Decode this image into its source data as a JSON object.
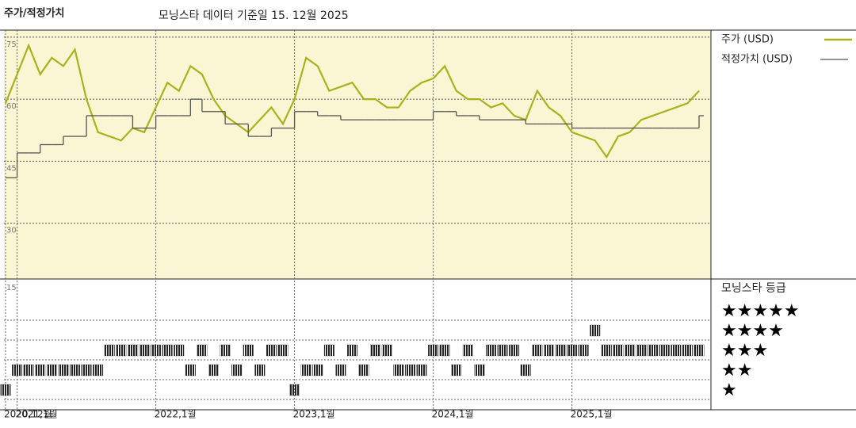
{
  "chart_data": [
    {
      "type": "line",
      "corner_label": "주가/적정가치",
      "title": "모닝스타 데이터 기준일 15. 12월 2025",
      "x": [
        "2020-12",
        "2021-01",
        "2021-02",
        "2021-03",
        "2021-04",
        "2021-05",
        "2021-06",
        "2021-07",
        "2021-08",
        "2021-09",
        "2021-10",
        "2021-11",
        "2021-12",
        "2022-01",
        "2022-02",
        "2022-03",
        "2022-04",
        "2022-05",
        "2022-06",
        "2022-07",
        "2022-08",
        "2022-09",
        "2022-10",
        "2022-11",
        "2022-12",
        "2023-01",
        "2023-02",
        "2023-03",
        "2023-04",
        "2023-05",
        "2023-06",
        "2023-07",
        "2023-08",
        "2023-09",
        "2023-10",
        "2023-11",
        "2023-12",
        "2024-01",
        "2024-02",
        "2024-03",
        "2024-04",
        "2024-05",
        "2024-06",
        "2024-07",
        "2024-08",
        "2024-09",
        "2024-10",
        "2024-11",
        "2024-12",
        "2025-01",
        "2025-02",
        "2025-03",
        "2025-04",
        "2025-05",
        "2025-06",
        "2025-07",
        "2025-08",
        "2025-09",
        "2025-10",
        "2025-11",
        "2025-12"
      ],
      "series": [
        {
          "name": "주가 (USD)",
          "color": "#a9b11c",
          "values": [
            59,
            66,
            73,
            66,
            70,
            68,
            72,
            60,
            52,
            51,
            50,
            53,
            52,
            58,
            64,
            62,
            68,
            66,
            60,
            56,
            54,
            52,
            55,
            58,
            54,
            60,
            70,
            68,
            62,
            63,
            64,
            60,
            60,
            58,
            58,
            62,
            64,
            65,
            68,
            62,
            60,
            60,
            58,
            59,
            56,
            55,
            62,
            58,
            56,
            52,
            51,
            50,
            46,
            51,
            52,
            55,
            56,
            57,
            58,
            59,
            62
          ]
        },
        {
          "name": "적정가치 (USD)",
          "color": "#555555",
          "step": true,
          "values": [
            41,
            47,
            47,
            49,
            49,
            51,
            51,
            56,
            56,
            56,
            56,
            53,
            53,
            56,
            56,
            56,
            60,
            57,
            57,
            54,
            54,
            51,
            51,
            53,
            53,
            57,
            57,
            56,
            56,
            55,
            55,
            55,
            55,
            55,
            55,
            55,
            55,
            57,
            57,
            56,
            56,
            55,
            55,
            55,
            55,
            54,
            54,
            54,
            54,
            53,
            53,
            53,
            53,
            53,
            53,
            53,
            53,
            53,
            53,
            53,
            56
          ]
        }
      ],
      "ylim": [
        16.5,
        76.7
      ],
      "yticks": [
        30,
        45,
        60,
        75
      ],
      "xticks": [
        {
          "value": "2020-12",
          "label": "2020,12월"
        },
        {
          "value": "2021-01",
          "label": "2021,1월"
        },
        {
          "value": "2022-01",
          "label": "2022,1월"
        },
        {
          "value": "2023-01",
          "label": "2023,1월"
        },
        {
          "value": "2024-01",
          "label": "2024,1월"
        },
        {
          "value": "2025-01",
          "label": "2025,1월"
        }
      ],
      "background": "#faf6d3",
      "grid": true
    },
    {
      "type": "rating",
      "title": "모닝스타 등급",
      "axis_note": "15",
      "color": "#222222",
      "levels": [
        {
          "value": 5,
          "label": "★★★★★"
        },
        {
          "value": 4,
          "label": "★★★★"
        },
        {
          "value": 3,
          "label": "★★★"
        },
        {
          "value": 2,
          "label": "★★"
        },
        {
          "value": 1,
          "label": "★"
        }
      ],
      "values": [
        1,
        2,
        2,
        2,
        2,
        2,
        2,
        2,
        2,
        3,
        3,
        3,
        3,
        3,
        3,
        3,
        2,
        3,
        2,
        3,
        2,
        3,
        2,
        3,
        3,
        1,
        2,
        2,
        3,
        2,
        3,
        2,
        3,
        3,
        2,
        2,
        2,
        3,
        3,
        2,
        3,
        2,
        3,
        3,
        3,
        2,
        3,
        3,
        3,
        3,
        3,
        4,
        3,
        3,
        3,
        3,
        3,
        3,
        3,
        3,
        3
      ]
    }
  ]
}
